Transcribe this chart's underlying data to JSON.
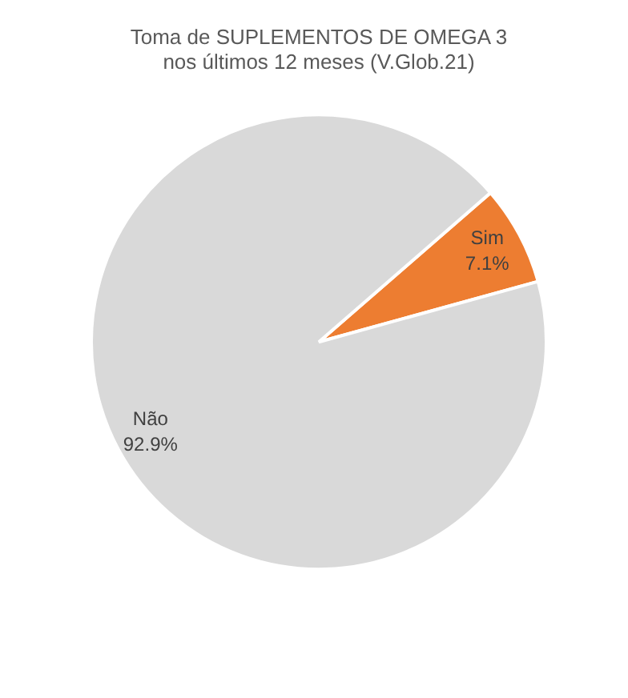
{
  "chart_data": {
    "type": "pie",
    "title": "Toma de SUPLEMENTOS DE OMEGA 3\nnos últimos 12 meses (V.Glob.21)",
    "categories": [
      "Sim",
      "Não"
    ],
    "values": [
      7.1,
      92.9
    ],
    "colors": [
      "#ed7d31",
      "#d9d9d9"
    ],
    "value_labels": [
      "7.1%",
      "92.9%"
    ],
    "legend": false
  }
}
